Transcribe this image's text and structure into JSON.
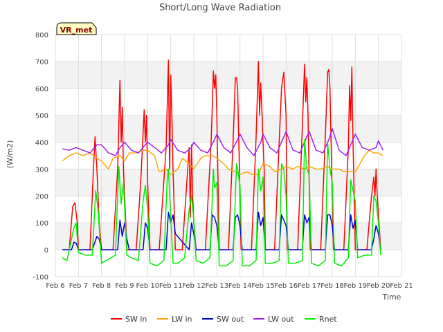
{
  "chart_data": {
    "type": "line",
    "title": "Short/Long Wave Radiation",
    "xlabel": "Time",
    "ylabel": "(W/m2)",
    "badge": "VR_met",
    "xlim": [
      6,
      21
    ],
    "ylim": [
      -100,
      800
    ],
    "x_ticks": [
      6,
      7,
      8,
      9,
      10,
      11,
      12,
      13,
      14,
      15,
      16,
      17,
      18,
      19,
      20,
      21
    ],
    "x_tick_labels": [
      "Feb 6",
      "Feb 7",
      "Feb 8",
      "Feb 9",
      "Feb 10",
      "Feb 11",
      "Feb 12",
      "Feb 13",
      "Feb 14",
      "Feb 15",
      "Feb 16",
      "Feb 17",
      "Feb 18",
      "Feb 19",
      "Feb 20",
      "Feb 21"
    ],
    "y_ticks": [
      -100,
      0,
      100,
      200,
      300,
      400,
      500,
      600,
      700,
      800
    ],
    "grid": true,
    "banded_background": true,
    "legend_position": "bottom",
    "series": [
      {
        "name": "SW in",
        "color": "#ff0000",
        "x": [
          6.3,
          6.6,
          6.75,
          6.85,
          6.95,
          7.0,
          7.5,
          7.65,
          7.72,
          7.8,
          7.9,
          8.0,
          8.5,
          8.7,
          8.8,
          8.85,
          8.9,
          8.95,
          9.0,
          9.05,
          9.1,
          9.2,
          9.5,
          9.7,
          9.85,
          9.9,
          9.95,
          10.0,
          10.1,
          10.5,
          10.8,
          10.9,
          10.95,
          11.0,
          11.05,
          11.1,
          11.2,
          11.5,
          11.8,
          11.85,
          11.9,
          11.95,
          12.0,
          12.1,
          12.5,
          12.75,
          12.85,
          12.9,
          12.95,
          13.0,
          13.1,
          13.5,
          13.7,
          13.8,
          13.85,
          13.9,
          13.95,
          14.05,
          14.5,
          14.7,
          14.8,
          14.85,
          14.9,
          14.95,
          15.0,
          15.05,
          15.1,
          15.5,
          15.7,
          15.8,
          15.9,
          16.0,
          16.05,
          16.5,
          16.7,
          16.8,
          16.85,
          16.9,
          16.95,
          17.05,
          17.5,
          17.7,
          17.8,
          17.85,
          17.9,
          17.95,
          18.05,
          18.5,
          18.7,
          18.75,
          18.8,
          18.85,
          18.9,
          19.0,
          19.5,
          19.7,
          19.8,
          19.85,
          19.9,
          19.95,
          20.1
        ],
        "y": [
          0,
          0,
          160,
          175,
          100,
          0,
          0,
          300,
          420,
          300,
          100,
          0,
          0,
          300,
          630,
          400,
          530,
          300,
          200,
          100,
          0,
          0,
          0,
          250,
          520,
          400,
          500,
          250,
          0,
          0,
          380,
          705,
          300,
          650,
          500,
          300,
          0,
          0,
          380,
          120,
          390,
          200,
          100,
          0,
          0,
          400,
          665,
          600,
          650,
          500,
          0,
          0,
          400,
          640,
          640,
          600,
          400,
          0,
          0,
          420,
          700,
          500,
          620,
          520,
          400,
          300,
          0,
          0,
          400,
          600,
          660,
          500,
          0,
          0,
          450,
          690,
          550,
          640,
          500,
          0,
          0,
          420,
          660,
          670,
          600,
          400,
          0,
          0,
          380,
          610,
          480,
          680,
          400,
          0,
          0,
          200,
          270,
          200,
          300,
          200,
          0
        ]
      },
      {
        "name": "LW in",
        "color": "#ffa500",
        "x": [
          6.3,
          6.6,
          6.9,
          7.2,
          7.5,
          7.8,
          8.0,
          8.3,
          8.5,
          8.8,
          9.0,
          9.2,
          9.5,
          9.8,
          10.0,
          10.3,
          10.5,
          10.8,
          11.0,
          11.3,
          11.5,
          11.8,
          12.0,
          12.3,
          12.5,
          12.8,
          13.0,
          13.3,
          13.5,
          13.8,
          14.0,
          14.3,
          14.5,
          14.8,
          15.0,
          15.3,
          15.5,
          15.8,
          16.0,
          16.3,
          16.5,
          16.8,
          17.0,
          17.3,
          17.5,
          17.8,
          18.0,
          18.3,
          18.5,
          18.8,
          19.0,
          19.2,
          19.4,
          19.6,
          19.8,
          20.0,
          20.2
        ],
        "y": [
          330,
          350,
          360,
          350,
          360,
          340,
          330,
          300,
          340,
          350,
          330,
          360,
          360,
          370,
          370,
          350,
          290,
          300,
          280,
          300,
          340,
          320,
          300,
          340,
          350,
          350,
          340,
          320,
          300,
          290,
          280,
          290,
          280,
          280,
          320,
          310,
          290,
          300,
          310,
          300,
          310,
          300,
          310,
          300,
          300,
          310,
          300,
          300,
          290,
          290,
          290,
          320,
          350,
          370,
          360,
          360,
          350
        ]
      },
      {
        "name": "SW out",
        "color": "#0000cc",
        "x": [
          6.3,
          6.7,
          6.8,
          6.9,
          7.0,
          7.6,
          7.8,
          7.9,
          8.0,
          8.7,
          8.8,
          8.9,
          9.0,
          9.1,
          9.2,
          9.8,
          9.9,
          10.0,
          10.1,
          10.8,
          10.9,
          11.0,
          11.1,
          11.2,
          11.8,
          11.9,
          12.0,
          12.1,
          12.7,
          12.8,
          12.9,
          13.0,
          13.1,
          13.7,
          13.8,
          13.9,
          14.0,
          14.1,
          14.7,
          14.8,
          14.9,
          15.0,
          15.1,
          15.7,
          15.8,
          15.9,
          16.0,
          16.1,
          16.7,
          16.8,
          16.9,
          17.0,
          17.1,
          17.7,
          17.8,
          17.9,
          18.0,
          18.1,
          18.7,
          18.8,
          18.9,
          19.0,
          19.1,
          19.7,
          19.8,
          19.9,
          20.0,
          20.1
        ],
        "y": [
          0,
          0,
          28,
          25,
          0,
          0,
          50,
          40,
          0,
          0,
          110,
          50,
          100,
          40,
          0,
          0,
          100,
          80,
          0,
          0,
          140,
          100,
          130,
          60,
          0,
          100,
          60,
          0,
          0,
          130,
          120,
          90,
          0,
          0,
          120,
          130,
          90,
          0,
          0,
          140,
          90,
          120,
          0,
          0,
          130,
          110,
          90,
          0,
          0,
          130,
          100,
          120,
          0,
          0,
          130,
          130,
          90,
          0,
          0,
          130,
          80,
          110,
          0,
          0,
          40,
          90,
          60,
          0
        ]
      },
      {
        "name": "LW out",
        "color": "#a020f0",
        "x": [
          6.3,
          6.6,
          6.9,
          7.2,
          7.5,
          7.8,
          8.0,
          8.3,
          8.6,
          8.8,
          9.0,
          9.3,
          9.6,
          9.9,
          10.0,
          10.3,
          10.6,
          10.9,
          11.0,
          11.3,
          11.6,
          11.9,
          12.0,
          12.3,
          12.6,
          12.9,
          13.0,
          13.3,
          13.6,
          13.9,
          14.0,
          14.3,
          14.6,
          14.9,
          15.0,
          15.3,
          15.6,
          15.9,
          16.0,
          16.3,
          16.6,
          16.9,
          17.0,
          17.3,
          17.6,
          17.9,
          18.0,
          18.3,
          18.6,
          18.9,
          19.0,
          19.3,
          19.6,
          19.9,
          20.0,
          20.2
        ],
        "y": [
          375,
          370,
          380,
          370,
          360,
          390,
          390,
          360,
          350,
          380,
          400,
          370,
          360,
          390,
          400,
          380,
          360,
          390,
          410,
          370,
          360,
          380,
          400,
          370,
          360,
          410,
          430,
          380,
          360,
          410,
          430,
          380,
          350,
          400,
          430,
          380,
          360,
          420,
          440,
          370,
          360,
          420,
          440,
          370,
          360,
          420,
          450,
          370,
          350,
          410,
          430,
          380,
          370,
          380,
          405,
          370
        ]
      },
      {
        "name": "Rnet",
        "color": "#00ee00",
        "x": [
          6.3,
          6.5,
          6.8,
          6.9,
          7.0,
          7.3,
          7.6,
          7.75,
          7.85,
          8.0,
          8.2,
          8.6,
          8.75,
          8.85,
          8.95,
          9.1,
          9.3,
          9.6,
          9.8,
          9.9,
          10.0,
          10.1,
          10.4,
          10.7,
          10.85,
          10.9,
          11.0,
          11.1,
          11.3,
          11.6,
          11.8,
          11.9,
          12.0,
          12.1,
          12.4,
          12.7,
          12.85,
          12.9,
          13.0,
          13.1,
          13.4,
          13.7,
          13.85,
          13.9,
          14.0,
          14.1,
          14.4,
          14.7,
          14.8,
          14.9,
          15.0,
          15.1,
          15.4,
          15.7,
          15.8,
          15.9,
          16.0,
          16.1,
          16.4,
          16.7,
          16.8,
          16.9,
          17.0,
          17.1,
          17.4,
          17.7,
          17.8,
          17.9,
          18.0,
          18.1,
          18.4,
          18.7,
          18.8,
          18.9,
          19.0,
          19.1,
          19.4,
          19.7,
          19.8,
          19.9,
          20.0,
          20.1
        ],
        "y": [
          -30,
          -40,
          80,
          100,
          -10,
          -20,
          -20,
          220,
          150,
          -50,
          -40,
          -20,
          310,
          170,
          250,
          -20,
          -30,
          -40,
          180,
          240,
          150,
          -50,
          -60,
          -40,
          270,
          300,
          120,
          -50,
          -50,
          -30,
          150,
          200,
          110,
          -40,
          -50,
          -30,
          300,
          230,
          250,
          -60,
          -60,
          -40,
          320,
          300,
          240,
          -60,
          -60,
          -40,
          300,
          220,
          270,
          -50,
          -50,
          -40,
          320,
          300,
          200,
          -50,
          -50,
          -40,
          410,
          300,
          280,
          -50,
          -60,
          -40,
          400,
          300,
          250,
          -50,
          -60,
          -30,
          260,
          220,
          180,
          -30,
          -20,
          -20,
          200,
          180,
          100,
          -20
        ]
      }
    ]
  }
}
